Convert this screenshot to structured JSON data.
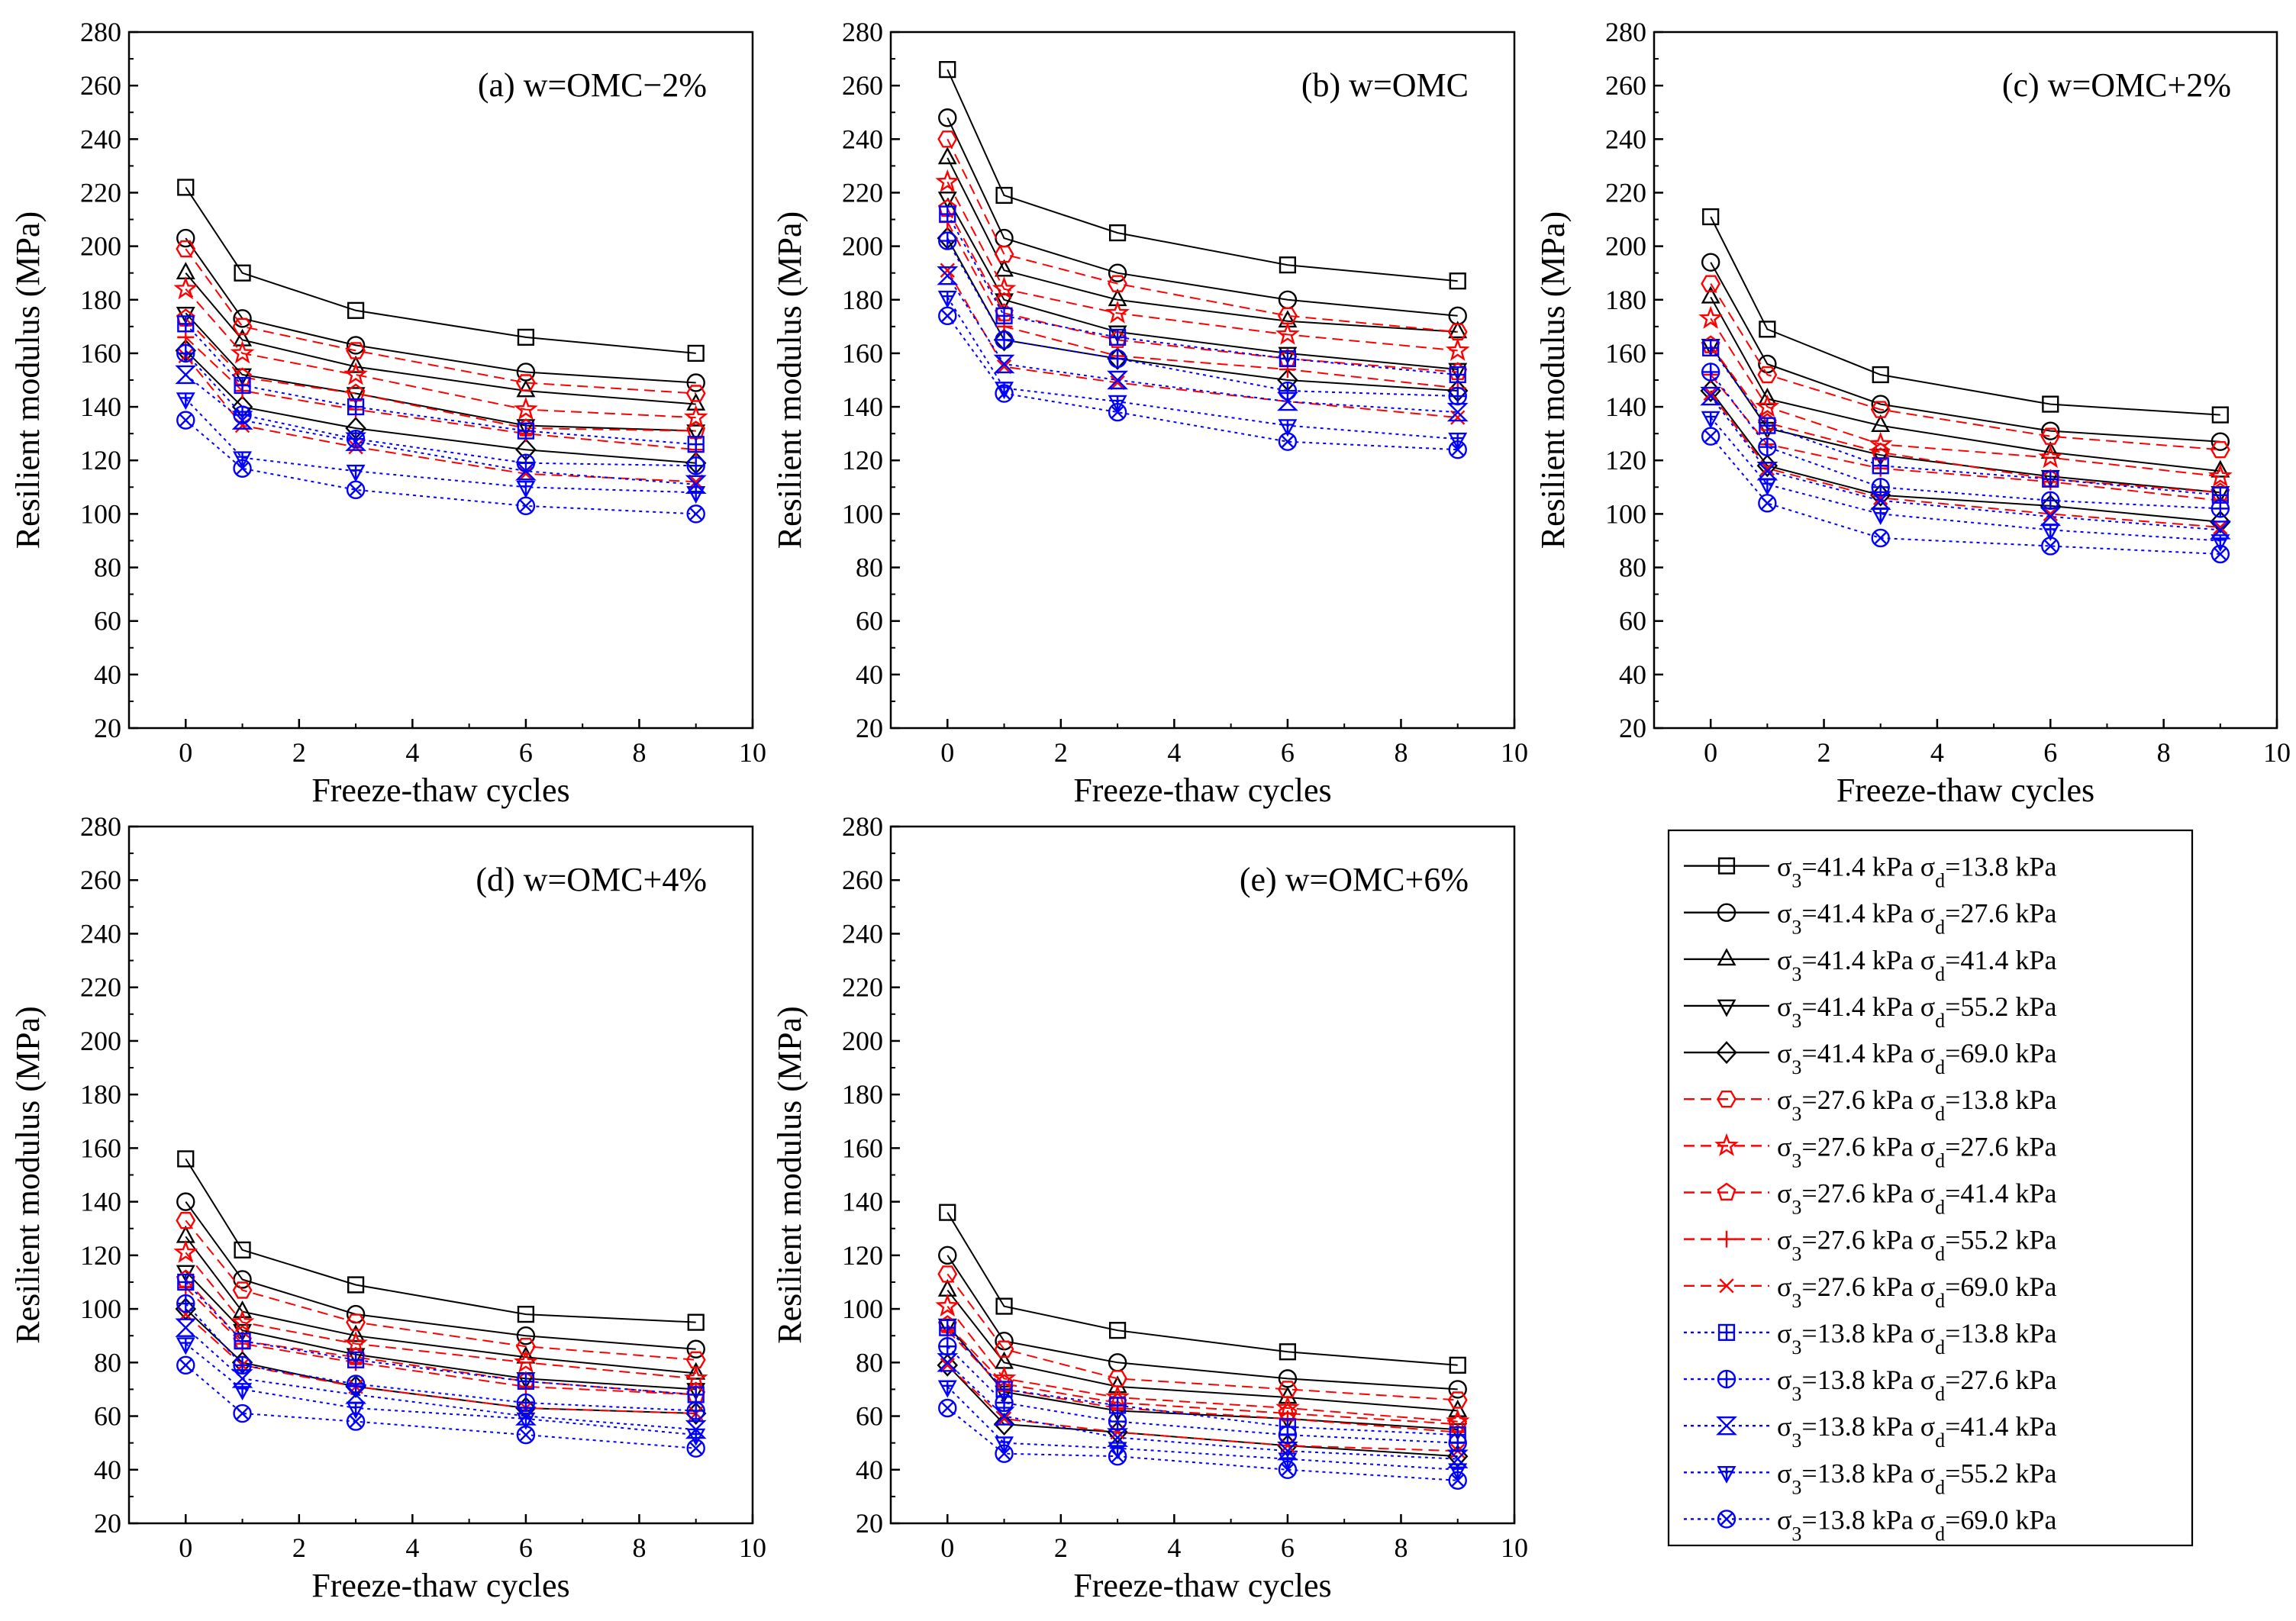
{
  "colors": {
    "black": "#000000",
    "red": "#ff0000",
    "blue": "#0000ff"
  },
  "chart_data": {
    "type": "line",
    "x": [
      0,
      1,
      3,
      6,
      9
    ],
    "xlabel": "Freeze-thaw cycles",
    "ylabel": "Resilient modulus (MPa)",
    "xlim": [
      -1,
      10
    ],
    "xticks": [
      0,
      2,
      4,
      6,
      8,
      10
    ],
    "ylim": [
      20,
      280
    ],
    "yticks": [
      20,
      40,
      60,
      80,
      100,
      120,
      140,
      160,
      180,
      200,
      220,
      240,
      260,
      280
    ],
    "grid": false,
    "legend": [
      {
        "s3": "41.4 kPa",
        "sd": "13.8 kPa",
        "color": "#000000",
        "dash": "solid",
        "marker": "square"
      },
      {
        "s3": "41.4 kPa",
        "sd": "27.6 kPa",
        "color": "#000000",
        "dash": "solid",
        "marker": "circle"
      },
      {
        "s3": "41.4 kPa",
        "sd": "41.4 kPa",
        "color": "#000000",
        "dash": "solid",
        "marker": "triangle-up"
      },
      {
        "s3": "41.4 kPa",
        "sd": "55.2 kPa",
        "color": "#000000",
        "dash": "solid",
        "marker": "triangle-down"
      },
      {
        "s3": "41.4 kPa",
        "sd": "69.0 kPa",
        "color": "#000000",
        "dash": "solid",
        "marker": "diamond"
      },
      {
        "s3": "27.6 kPa",
        "sd": "13.8 kPa",
        "color": "#ff0000",
        "dash": "dashed",
        "marker": "hexagon"
      },
      {
        "s3": "27.6 kPa",
        "sd": "27.6 kPa",
        "color": "#ff0000",
        "dash": "dashed",
        "marker": "star"
      },
      {
        "s3": "27.6 kPa",
        "sd": "41.4 kPa",
        "color": "#ff0000",
        "dash": "dashed",
        "marker": "pentagon"
      },
      {
        "s3": "27.6 kPa",
        "sd": "55.2 kPa",
        "color": "#ff0000",
        "dash": "dashed",
        "marker": "plus"
      },
      {
        "s3": "27.6 kPa",
        "sd": "69.0 kPa",
        "color": "#ff0000",
        "dash": "dashed",
        "marker": "cross"
      },
      {
        "s3": "13.8 kPa",
        "sd": "13.8 kPa",
        "color": "#0000ff",
        "dash": "dotted",
        "marker": "square-plus"
      },
      {
        "s3": "13.8 kPa",
        "sd": "27.6 kPa",
        "color": "#0000ff",
        "dash": "dotted",
        "marker": "circle-plus"
      },
      {
        "s3": "13.8 kPa",
        "sd": "41.4 kPa",
        "color": "#0000ff",
        "dash": "dotted",
        "marker": "hourglass"
      },
      {
        "s3": "13.8 kPa",
        "sd": "55.2 kPa",
        "color": "#0000ff",
        "dash": "dotted",
        "marker": "triangle-down-plus"
      },
      {
        "s3": "13.8 kPa",
        "sd": "69.0 kPa",
        "color": "#0000ff",
        "dash": "dotted",
        "marker": "circle-cross"
      }
    ],
    "panels": [
      {
        "title": "(a) w=OMC−2%",
        "values": [
          [
            222,
            190,
            176,
            166,
            160
          ],
          [
            203,
            173,
            163,
            153,
            149
          ],
          [
            190,
            165,
            155,
            146,
            141
          ],
          [
            175,
            152,
            145,
            133,
            131
          ],
          [
            161,
            140,
            132,
            124,
            119
          ],
          [
            199,
            170,
            161,
            149,
            145
          ],
          [
            184,
            160,
            152,
            139,
            136
          ],
          [
            173,
            151,
            145,
            132,
            131
          ],
          [
            166,
            146,
            139,
            130,
            124
          ],
          [
            159,
            133,
            125,
            115,
            112
          ],
          [
            171,
            148,
            140,
            131,
            126
          ],
          [
            160,
            137,
            128,
            119,
            118
          ],
          [
            152,
            135,
            127,
            116,
            111
          ],
          [
            143,
            121,
            116,
            110,
            108
          ],
          [
            135,
            117,
            109,
            103,
            100
          ]
        ]
      },
      {
        "title": "(b) w=OMC",
        "values": [
          [
            266,
            219,
            205,
            193,
            187
          ],
          [
            248,
            203,
            190,
            180,
            174
          ],
          [
            233,
            191,
            180,
            172,
            168
          ],
          [
            218,
            180,
            168,
            160,
            154
          ],
          [
            203,
            165,
            158,
            150,
            146
          ],
          [
            240,
            197,
            186,
            174,
            168
          ],
          [
            224,
            184,
            175,
            167,
            161
          ],
          [
            214,
            175,
            165,
            158,
            153
          ],
          [
            209,
            170,
            159,
            154,
            147
          ],
          [
            191,
            155,
            149,
            142,
            136
          ],
          [
            212,
            174,
            166,
            158,
            152
          ],
          [
            202,
            165,
            158,
            146,
            144
          ],
          [
            189,
            156,
            150,
            142,
            138
          ],
          [
            181,
            147,
            142,
            133,
            128
          ],
          [
            174,
            145,
            138,
            127,
            124
          ]
        ]
      },
      {
        "title": "(c) w=OMC+2%",
        "values": [
          [
            211,
            169,
            152,
            141,
            137
          ],
          [
            194,
            156,
            141,
            131,
            127
          ],
          [
            181,
            143,
            133,
            123,
            116
          ],
          [
            163,
            132,
            122,
            114,
            108
          ],
          [
            146,
            118,
            107,
            103,
            97
          ],
          [
            186,
            152,
            139,
            129,
            124
          ],
          [
            173,
            140,
            126,
            121,
            114
          ],
          [
            163,
            134,
            123,
            113,
            108
          ],
          [
            152,
            126,
            117,
            112,
            105
          ],
          [
            145,
            117,
            106,
            100,
            95
          ],
          [
            162,
            133,
            118,
            113,
            107
          ],
          [
            153,
            125,
            110,
            105,
            102
          ],
          [
            144,
            116,
            105,
            99,
            94
          ],
          [
            136,
            111,
            100,
            94,
            90
          ],
          [
            129,
            104,
            91,
            88,
            85
          ]
        ]
      },
      {
        "title": "(d) w=OMC+4%",
        "values": [
          [
            156,
            122,
            109,
            98,
            95
          ],
          [
            140,
            111,
            98,
            90,
            85
          ],
          [
            127,
            99,
            90,
            82,
            76
          ],
          [
            114,
            92,
            83,
            74,
            70
          ],
          [
            100,
            80,
            71,
            63,
            61
          ],
          [
            133,
            107,
            95,
            86,
            81
          ],
          [
            121,
            95,
            87,
            80,
            74
          ],
          [
            111,
            88,
            82,
            73,
            68
          ],
          [
            108,
            87,
            80,
            71,
            68
          ],
          [
            98,
            79,
            71,
            63,
            61
          ],
          [
            110,
            88,
            81,
            73,
            68
          ],
          [
            102,
            79,
            72,
            65,
            62
          ],
          [
            93,
            74,
            68,
            60,
            55
          ],
          [
            87,
            70,
            63,
            59,
            53
          ],
          [
            79,
            61,
            58,
            53,
            48
          ]
        ]
      },
      {
        "title": "(e) w=OMC+6%",
        "values": [
          [
            136,
            101,
            92,
            84,
            79
          ],
          [
            120,
            88,
            80,
            74,
            70
          ],
          [
            107,
            80,
            71,
            67,
            62
          ],
          [
            94,
            69,
            62,
            59,
            55
          ],
          [
            79,
            57,
            54,
            49,
            45
          ],
          [
            113,
            85,
            74,
            70,
            66
          ],
          [
            101,
            74,
            67,
            63,
            58
          ],
          [
            94,
            72,
            65,
            61,
            57
          ],
          [
            92,
            70,
            63,
            59,
            54
          ],
          [
            79,
            59,
            54,
            49,
            47
          ],
          [
            93,
            70,
            64,
            56,
            53
          ],
          [
            86,
            65,
            58,
            53,
            50
          ],
          [
            80,
            60,
            52,
            47,
            44
          ],
          [
            71,
            50,
            48,
            44,
            40
          ],
          [
            63,
            46,
            45,
            40,
            36
          ]
        ]
      }
    ]
  }
}
